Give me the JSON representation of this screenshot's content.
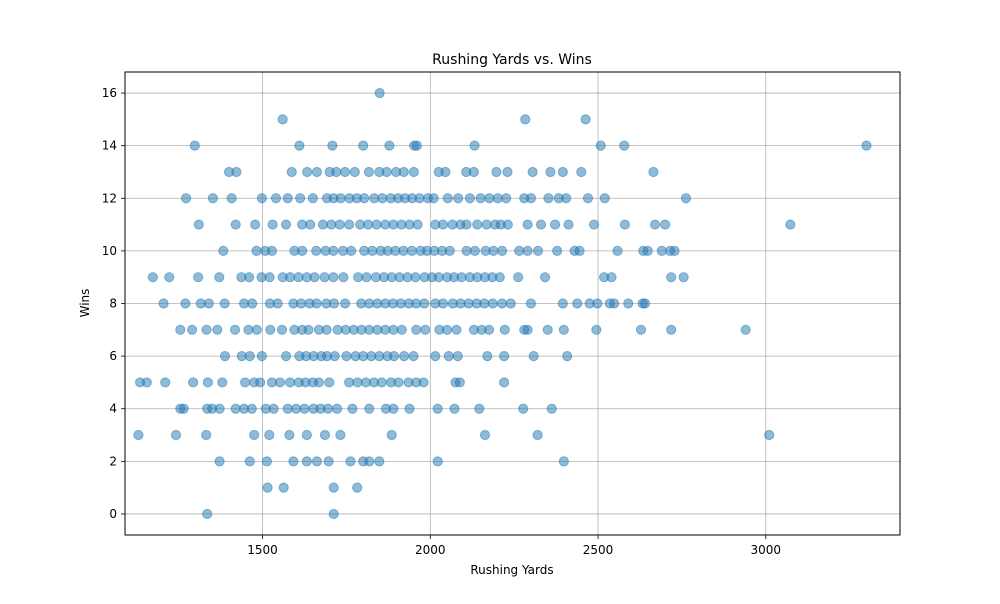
{
  "chart_data": {
    "type": "scatter",
    "title": "Rushing Yards vs. Wins",
    "xlabel": "Rushing Yards",
    "ylabel": "Wins",
    "xlim": [
      1090,
      3400
    ],
    "ylim": [
      -0.8,
      16.8
    ],
    "xticks": [
      1500,
      2000,
      2500,
      3000
    ],
    "yticks": [
      0,
      2,
      4,
      6,
      8,
      10,
      12,
      14,
      16
    ],
    "grid": true,
    "marker_color": "#1f77b4",
    "marker_opacity": 0.5,
    "points": [
      [
        1849,
        16
      ],
      [
        1560,
        15
      ],
      [
        2283,
        15
      ],
      [
        2463,
        15
      ],
      [
        1298,
        14
      ],
      [
        1610,
        14
      ],
      [
        1708,
        14
      ],
      [
        1800,
        14
      ],
      [
        1878,
        14
      ],
      [
        1952,
        14
      ],
      [
        1960,
        14
      ],
      [
        2132,
        14
      ],
      [
        2508,
        14
      ],
      [
        2578,
        14
      ],
      [
        3300,
        14
      ],
      [
        1400,
        13
      ],
      [
        1422,
        13
      ],
      [
        1587,
        13
      ],
      [
        1633,
        13
      ],
      [
        1662,
        13
      ],
      [
        1700,
        13
      ],
      [
        1720,
        13
      ],
      [
        1746,
        13
      ],
      [
        1775,
        13
      ],
      [
        1817,
        13
      ],
      [
        1848,
        13
      ],
      [
        1870,
        13
      ],
      [
        1898,
        13
      ],
      [
        1921,
        13
      ],
      [
        1951,
        13
      ],
      [
        2025,
        13
      ],
      [
        2045,
        13
      ],
      [
        2107,
        13
      ],
      [
        2130,
        13
      ],
      [
        2197,
        13
      ],
      [
        2230,
        13
      ],
      [
        2305,
        13
      ],
      [
        2358,
        13
      ],
      [
        2395,
        13
      ],
      [
        2450,
        13
      ],
      [
        2665,
        13
      ],
      [
        1272,
        12
      ],
      [
        1352,
        12
      ],
      [
        1408,
        12
      ],
      [
        1498,
        12
      ],
      [
        1540,
        12
      ],
      [
        1575,
        12
      ],
      [
        1612,
        12
      ],
      [
        1650,
        12
      ],
      [
        1692,
        12
      ],
      [
        1712,
        12
      ],
      [
        1733,
        12
      ],
      [
        1759,
        12
      ],
      [
        1781,
        12
      ],
      [
        1803,
        12
      ],
      [
        1833,
        12
      ],
      [
        1857,
        12
      ],
      [
        1882,
        12
      ],
      [
        1904,
        12
      ],
      [
        1925,
        12
      ],
      [
        1946,
        12
      ],
      [
        1968,
        12
      ],
      [
        1993,
        12
      ],
      [
        2010,
        12
      ],
      [
        2052,
        12
      ],
      [
        2083,
        12
      ],
      [
        2118,
        12
      ],
      [
        2150,
        12
      ],
      [
        2176,
        12
      ],
      [
        2201,
        12
      ],
      [
        2226,
        12
      ],
      [
        2280,
        12
      ],
      [
        2300,
        12
      ],
      [
        2352,
        12
      ],
      [
        2383,
        12
      ],
      [
        2405,
        12
      ],
      [
        2470,
        12
      ],
      [
        2520,
        12
      ],
      [
        2762,
        12
      ],
      [
        1310,
        11
      ],
      [
        1420,
        11
      ],
      [
        1478,
        11
      ],
      [
        1530,
        11
      ],
      [
        1570,
        11
      ],
      [
        1618,
        11
      ],
      [
        1642,
        11
      ],
      [
        1680,
        11
      ],
      [
        1705,
        11
      ],
      [
        1730,
        11
      ],
      [
        1758,
        11
      ],
      [
        1791,
        11
      ],
      [
        1815,
        11
      ],
      [
        1840,
        11
      ],
      [
        1866,
        11
      ],
      [
        1890,
        11
      ],
      [
        1914,
        11
      ],
      [
        1938,
        11
      ],
      [
        1962,
        11
      ],
      [
        2015,
        11
      ],
      [
        2038,
        11
      ],
      [
        2066,
        11
      ],
      [
        2090,
        11
      ],
      [
        2108,
        11
      ],
      [
        2140,
        11
      ],
      [
        2168,
        11
      ],
      [
        2193,
        11
      ],
      [
        2210,
        11
      ],
      [
        2231,
        11
      ],
      [
        2290,
        11
      ],
      [
        2330,
        11
      ],
      [
        2372,
        11
      ],
      [
        2412,
        11
      ],
      [
        2488,
        11
      ],
      [
        2580,
        11
      ],
      [
        2670,
        11
      ],
      [
        2700,
        11
      ],
      [
        3073,
        11
      ],
      [
        1383,
        10
      ],
      [
        1482,
        10
      ],
      [
        1508,
        10
      ],
      [
        1528,
        10
      ],
      [
        1595,
        10
      ],
      [
        1618,
        10
      ],
      [
        1660,
        10
      ],
      [
        1688,
        10
      ],
      [
        1711,
        10
      ],
      [
        1740,
        10
      ],
      [
        1764,
        10
      ],
      [
        1803,
        10
      ],
      [
        1827,
        10
      ],
      [
        1852,
        10
      ],
      [
        1873,
        10
      ],
      [
        1896,
        10
      ],
      [
        1920,
        10
      ],
      [
        1945,
        10
      ],
      [
        1971,
        10
      ],
      [
        1990,
        10
      ],
      [
        2012,
        10
      ],
      [
        2035,
        10
      ],
      [
        2058,
        10
      ],
      [
        2108,
        10
      ],
      [
        2133,
        10
      ],
      [
        2165,
        10
      ],
      [
        2188,
        10
      ],
      [
        2214,
        10
      ],
      [
        2265,
        10
      ],
      [
        2290,
        10
      ],
      [
        2321,
        10
      ],
      [
        2378,
        10
      ],
      [
        2430,
        10
      ],
      [
        2445,
        10
      ],
      [
        2558,
        10
      ],
      [
        2635,
        10
      ],
      [
        2648,
        10
      ],
      [
        2690,
        10
      ],
      [
        2715,
        10
      ],
      [
        2728,
        10
      ],
      [
        1173,
        9
      ],
      [
        1222,
        9
      ],
      [
        1308,
        9
      ],
      [
        1371,
        9
      ],
      [
        1437,
        9
      ],
      [
        1460,
        9
      ],
      [
        1497,
        9
      ],
      [
        1521,
        9
      ],
      [
        1560,
        9
      ],
      [
        1582,
        9
      ],
      [
        1607,
        9
      ],
      [
        1632,
        9
      ],
      [
        1655,
        9
      ],
      [
        1685,
        9
      ],
      [
        1711,
        9
      ],
      [
        1741,
        9
      ],
      [
        1785,
        9
      ],
      [
        1810,
        9
      ],
      [
        1838,
        9
      ],
      [
        1862,
        9
      ],
      [
        1885,
        9
      ],
      [
        1908,
        9
      ],
      [
        1932,
        9
      ],
      [
        1956,
        9
      ],
      [
        1983,
        9
      ],
      [
        2005,
        9
      ],
      [
        2025,
        9
      ],
      [
        2050,
        9
      ],
      [
        2071,
        9
      ],
      [
        2093,
        9
      ],
      [
        2118,
        9
      ],
      [
        2140,
        9
      ],
      [
        2163,
        9
      ],
      [
        2185,
        9
      ],
      [
        2207,
        9
      ],
      [
        2262,
        9
      ],
      [
        2342,
        9
      ],
      [
        2518,
        9
      ],
      [
        2540,
        9
      ],
      [
        2718,
        9
      ],
      [
        2755,
        9
      ],
      [
        1205,
        8
      ],
      [
        1270,
        8
      ],
      [
        1316,
        8
      ],
      [
        1340,
        8
      ],
      [
        1387,
        8
      ],
      [
        1445,
        8
      ],
      [
        1469,
        8
      ],
      [
        1522,
        8
      ],
      [
        1545,
        8
      ],
      [
        1592,
        8
      ],
      [
        1615,
        8
      ],
      [
        1640,
        8
      ],
      [
        1661,
        8
      ],
      [
        1690,
        8
      ],
      [
        1713,
        8
      ],
      [
        1746,
        8
      ],
      [
        1794,
        8
      ],
      [
        1818,
        8
      ],
      [
        1842,
        8
      ],
      [
        1866,
        8
      ],
      [
        1889,
        8
      ],
      [
        1912,
        8
      ],
      [
        1936,
        8
      ],
      [
        1958,
        8
      ],
      [
        1982,
        8
      ],
      [
        2015,
        8
      ],
      [
        2038,
        8
      ],
      [
        2067,
        8
      ],
      [
        2090,
        8
      ],
      [
        2114,
        8
      ],
      [
        2138,
        8
      ],
      [
        2161,
        8
      ],
      [
        2186,
        8
      ],
      [
        2214,
        8
      ],
      [
        2240,
        8
      ],
      [
        2300,
        8
      ],
      [
        2395,
        8
      ],
      [
        2438,
        8
      ],
      [
        2475,
        8
      ],
      [
        2498,
        8
      ],
      [
        2535,
        8
      ],
      [
        2548,
        8
      ],
      [
        2590,
        8
      ],
      [
        2633,
        8
      ],
      [
        2640,
        8
      ],
      [
        1255,
        7
      ],
      [
        1290,
        7
      ],
      [
        1333,
        7
      ],
      [
        1365,
        7
      ],
      [
        1418,
        7
      ],
      [
        1458,
        7
      ],
      [
        1483,
        7
      ],
      [
        1523,
        7
      ],
      [
        1558,
        7
      ],
      [
        1595,
        7
      ],
      [
        1618,
        7
      ],
      [
        1637,
        7
      ],
      [
        1668,
        7
      ],
      [
        1691,
        7
      ],
      [
        1724,
        7
      ],
      [
        1748,
        7
      ],
      [
        1772,
        7
      ],
      [
        1795,
        7
      ],
      [
        1818,
        7
      ],
      [
        1842,
        7
      ],
      [
        1866,
        7
      ],
      [
        1890,
        7
      ],
      [
        1915,
        7
      ],
      [
        1958,
        7
      ],
      [
        1985,
        7
      ],
      [
        2027,
        7
      ],
      [
        2050,
        7
      ],
      [
        2078,
        7
      ],
      [
        2130,
        7
      ],
      [
        2153,
        7
      ],
      [
        2175,
        7
      ],
      [
        2222,
        7
      ],
      [
        2280,
        7
      ],
      [
        2290,
        7
      ],
      [
        2350,
        7
      ],
      [
        2398,
        7
      ],
      [
        2495,
        7
      ],
      [
        2628,
        7
      ],
      [
        2718,
        7
      ],
      [
        2940,
        7
      ],
      [
        1388,
        6
      ],
      [
        1438,
        6
      ],
      [
        1462,
        6
      ],
      [
        1498,
        6
      ],
      [
        1570,
        6
      ],
      [
        1610,
        6
      ],
      [
        1630,
        6
      ],
      [
        1652,
        6
      ],
      [
        1675,
        6
      ],
      [
        1692,
        6
      ],
      [
        1715,
        6
      ],
      [
        1750,
        6
      ],
      [
        1777,
        6
      ],
      [
        1800,
        6
      ],
      [
        1824,
        6
      ],
      [
        1848,
        6
      ],
      [
        1872,
        6
      ],
      [
        1892,
        6
      ],
      [
        1922,
        6
      ],
      [
        1950,
        6
      ],
      [
        2015,
        6
      ],
      [
        2055,
        6
      ],
      [
        2082,
        6
      ],
      [
        2170,
        6
      ],
      [
        2220,
        6
      ],
      [
        2308,
        6
      ],
      [
        2408,
        6
      ],
      [
        1135,
        5
      ],
      [
        1155,
        5
      ],
      [
        1210,
        5
      ],
      [
        1293,
        5
      ],
      [
        1337,
        5
      ],
      [
        1380,
        5
      ],
      [
        1448,
        5
      ],
      [
        1475,
        5
      ],
      [
        1493,
        5
      ],
      [
        1528,
        5
      ],
      [
        1552,
        5
      ],
      [
        1582,
        5
      ],
      [
        1608,
        5
      ],
      [
        1628,
        5
      ],
      [
        1650,
        5
      ],
      [
        1668,
        5
      ],
      [
        1699,
        5
      ],
      [
        1758,
        5
      ],
      [
        1783,
        5
      ],
      [
        1808,
        5
      ],
      [
        1832,
        5
      ],
      [
        1855,
        5
      ],
      [
        1883,
        5
      ],
      [
        1905,
        5
      ],
      [
        1935,
        5
      ],
      [
        1958,
        5
      ],
      [
        1980,
        5
      ],
      [
        2075,
        5
      ],
      [
        2088,
        5
      ],
      [
        2220,
        5
      ],
      [
        1255,
        4
      ],
      [
        1265,
        4
      ],
      [
        1335,
        4
      ],
      [
        1350,
        4
      ],
      [
        1372,
        4
      ],
      [
        1420,
        4
      ],
      [
        1445,
        4
      ],
      [
        1468,
        4
      ],
      [
        1510,
        4
      ],
      [
        1533,
        4
      ],
      [
        1575,
        4
      ],
      [
        1600,
        4
      ],
      [
        1625,
        4
      ],
      [
        1652,
        4
      ],
      [
        1673,
        4
      ],
      [
        1695,
        4
      ],
      [
        1722,
        4
      ],
      [
        1768,
        4
      ],
      [
        1818,
        4
      ],
      [
        1868,
        4
      ],
      [
        1890,
        4
      ],
      [
        1938,
        4
      ],
      [
        2022,
        4
      ],
      [
        2072,
        4
      ],
      [
        2146,
        4
      ],
      [
        2277,
        4
      ],
      [
        2362,
        4
      ],
      [
        1130,
        3
      ],
      [
        1242,
        3
      ],
      [
        1332,
        3
      ],
      [
        1475,
        3
      ],
      [
        1520,
        3
      ],
      [
        1580,
        3
      ],
      [
        1632,
        3
      ],
      [
        1686,
        3
      ],
      [
        1732,
        3
      ],
      [
        1885,
        3
      ],
      [
        2163,
        3
      ],
      [
        2320,
        3
      ],
      [
        3010,
        3
      ],
      [
        1372,
        2
      ],
      [
        1462,
        2
      ],
      [
        1513,
        2
      ],
      [
        1592,
        2
      ],
      [
        1632,
        2
      ],
      [
        1662,
        2
      ],
      [
        1697,
        2
      ],
      [
        1762,
        2
      ],
      [
        1800,
        2
      ],
      [
        1818,
        2
      ],
      [
        1848,
        2
      ],
      [
        2022,
        2
      ],
      [
        2398,
        2
      ],
      [
        1515,
        1
      ],
      [
        1563,
        1
      ],
      [
        1712,
        1
      ],
      [
        1782,
        1
      ],
      [
        1335,
        0
      ],
      [
        1712,
        0
      ]
    ]
  }
}
